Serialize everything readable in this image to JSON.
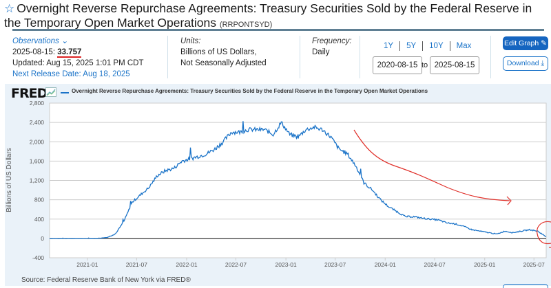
{
  "header": {
    "title": "Overnight Reverse Repurchase Agreements: Treasury Securities Sold by the Federal Reserve in the Temporary Open Market Operations",
    "series_id": "(RRPONTSYD)",
    "favorite_icon": "star-outline-icon"
  },
  "observations": {
    "label": "Observations",
    "date": "2025-08-15:",
    "value": "33.757",
    "updated": "Updated: Aug 15, 2025 1:01 PM CDT",
    "next_release": "Next Release Date: Aug 18, 2025"
  },
  "units": {
    "label": "Units:",
    "line1": "Billions of US Dollars,",
    "line2": "Not Seasonally Adjusted"
  },
  "frequency": {
    "label": "Frequency:",
    "value": "Daily"
  },
  "range": {
    "buttons": [
      "1Y",
      "5Y",
      "10Y",
      "Max"
    ],
    "start": "2020-08-15",
    "to_label": "to",
    "end": "2025-08-15"
  },
  "actions": {
    "edit_graph": "Edit Graph",
    "download": "Download"
  },
  "chart_panel": {
    "logo": "FRED",
    "source": "Source: Federal Reserve Bank of New York via FRED®"
  },
  "colors": {
    "series": "#1a73c8",
    "annotation": "#e0302a",
    "accent": "#1565c0"
  },
  "chart_data": {
    "type": "line",
    "title": "Overnight Reverse Repurchase Agreements: Treasury Securities Sold by the Federal Reserve in the Temporary Open Market Operations",
    "xlabel": "",
    "ylabel": "Billions of US Dollars",
    "ylim": [
      -400,
      2800
    ],
    "yticks": [
      -400,
      0,
      400,
      800,
      1200,
      1600,
      2000,
      2400,
      2800
    ],
    "ytick_labels": [
      "-400",
      "0",
      "400",
      "800",
      "1,200",
      "1,600",
      "2,000",
      "2,400",
      "2,800"
    ],
    "xlim": [
      "2020-08-15",
      "2025-08-15"
    ],
    "xtick_labels": [
      "2021-01",
      "2021-07",
      "2022-01",
      "2022-07",
      "2023-01",
      "2023-07",
      "2024-01",
      "2024-07",
      "2025-01",
      "2025-07"
    ],
    "grid": true,
    "legend": "top-left",
    "series": [
      {
        "name": "Overnight Reverse Repurchase Agreements: Treasury Securities Sold by the Federal Reserve in the Temporary Open Market Operations",
        "points": [
          [
            "2020-08",
            0
          ],
          [
            "2020-10",
            0
          ],
          [
            "2020-12",
            0
          ],
          [
            "2021-01",
            2
          ],
          [
            "2021-02",
            5
          ],
          [
            "2021-03",
            20
          ],
          [
            "2021-04",
            100
          ],
          [
            "2021-05",
            350
          ],
          [
            "2021-06",
            750
          ],
          [
            "2021-07",
            900
          ],
          [
            "2021-08",
            1050
          ],
          [
            "2021-09",
            1300
          ],
          [
            "2021-10",
            1400
          ],
          [
            "2021-11",
            1450
          ],
          [
            "2021-12",
            1600
          ],
          [
            "2022-01",
            1650
          ],
          [
            "2022-02",
            1700
          ],
          [
            "2022-03",
            1750
          ],
          [
            "2022-04",
            1850
          ],
          [
            "2022-05",
            2000
          ],
          [
            "2022-06",
            2200
          ],
          [
            "2022-07",
            2200
          ],
          [
            "2022-08",
            2250
          ],
          [
            "2022-09",
            2250
          ],
          [
            "2022-10",
            2250
          ],
          [
            "2022-11",
            2150
          ],
          [
            "2022-12",
            2400
          ],
          [
            "2023-01",
            2150
          ],
          [
            "2023-02",
            2100
          ],
          [
            "2023-03",
            2250
          ],
          [
            "2023-04",
            2300
          ],
          [
            "2023-05",
            2250
          ],
          [
            "2023-06",
            2100
          ],
          [
            "2023-07",
            1850
          ],
          [
            "2023-08",
            1750
          ],
          [
            "2023-09",
            1500
          ],
          [
            "2023-10",
            1150
          ],
          [
            "2023-11",
            1000
          ],
          [
            "2023-12",
            800
          ],
          [
            "2024-01",
            650
          ],
          [
            "2024-02",
            550
          ],
          [
            "2024-03",
            450
          ],
          [
            "2024-04",
            450
          ],
          [
            "2024-05",
            420
          ],
          [
            "2024-06",
            400
          ],
          [
            "2024-07",
            380
          ],
          [
            "2024-08",
            320
          ],
          [
            "2024-09",
            300
          ],
          [
            "2024-10",
            250
          ],
          [
            "2024-11",
            180
          ],
          [
            "2024-12",
            150
          ],
          [
            "2025-01",
            120
          ],
          [
            "2025-02",
            90
          ],
          [
            "2025-03",
            150
          ],
          [
            "2025-04",
            120
          ],
          [
            "2025-05",
            150
          ],
          [
            "2025-06",
            180
          ],
          [
            "2025-07",
            150
          ],
          [
            "2025-08-15",
            33.757
          ]
        ]
      }
    ],
    "annotations": [
      {
        "type": "hand-drawn-arrow",
        "description": "red downward-curving arrow indicating decline from mid-2023 to 2025"
      },
      {
        "type": "hand-drawn-circle",
        "description": "red circle around latest value at right edge"
      }
    ]
  }
}
